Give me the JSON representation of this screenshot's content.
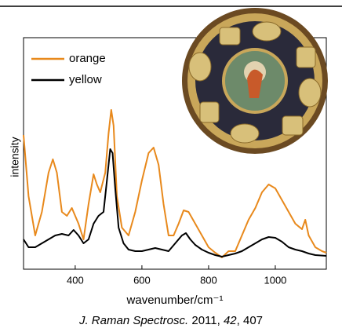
{
  "chart_data": {
    "type": "line",
    "xlabel": "wavenumber/cm⁻¹",
    "ylabel": "intensity",
    "citation": [
      "J. Raman Spectrosc.",
      " 2011, ",
      "42",
      ", 407"
    ],
    "xlim": [
      245,
      1153
    ],
    "ylim": [
      0,
      295
    ],
    "xticks": [
      400,
      600,
      800,
      1000
    ],
    "legend": "upper left",
    "series": [
      {
        "name": "orange",
        "color": "#e8891c",
        "x": [
          245,
          260,
          280,
          300,
          320,
          333,
          345,
          360,
          375,
          390,
          410,
          425,
          440,
          455,
          465,
          475,
          490,
          500,
          508,
          515,
          525,
          540,
          560,
          580,
          600,
          620,
          635,
          650,
          665,
          680,
          695,
          710,
          725,
          740,
          760,
          780,
          800,
          820,
          840,
          860,
          880,
          900,
          920,
          940,
          960,
          980,
          1000,
          1020,
          1040,
          1060,
          1080,
          1090,
          1100,
          1120,
          1140,
          1153
        ],
        "values": [
          171,
          93,
          43,
          73,
          123,
          140,
          123,
          73,
          68,
          78,
          58,
          38,
          83,
          121,
          108,
          98,
          123,
          173,
          203,
          183,
          93,
          53,
          43,
          73,
          113,
          148,
          155,
          133,
          83,
          43,
          43,
          58,
          75,
          73,
          58,
          43,
          28,
          21,
          15,
          23,
          23,
          43,
          63,
          78,
          98,
          108,
          103,
          88,
          73,
          58,
          51,
          63,
          43,
          28,
          23,
          21
        ]
      },
      {
        "name": "yellow",
        "color": "#000000",
        "x": [
          245,
          260,
          280,
          300,
          320,
          340,
          360,
          380,
          395,
          410,
          425,
          440,
          455,
          470,
          485,
          495,
          505,
          512,
          520,
          530,
          545,
          560,
          580,
          600,
          620,
          640,
          660,
          680,
          700,
          720,
          732,
          745,
          760,
          780,
          800,
          820,
          840,
          860,
          880,
          900,
          920,
          940,
          960,
          980,
          1000,
          1020,
          1040,
          1060,
          1080,
          1100,
          1120,
          1153
        ],
        "values": [
          38,
          28,
          28,
          33,
          38,
          43,
          45,
          43,
          50,
          43,
          33,
          38,
          58,
          68,
          73,
          113,
          153,
          148,
          103,
          53,
          33,
          25,
          23,
          23,
          25,
          27,
          25,
          23,
          33,
          43,
          46,
          38,
          31,
          25,
          21,
          18,
          16,
          18,
          20,
          23,
          28,
          33,
          38,
          41,
          40,
          35,
          28,
          25,
          23,
          20,
          18,
          17
        ]
      }
    ]
  }
}
